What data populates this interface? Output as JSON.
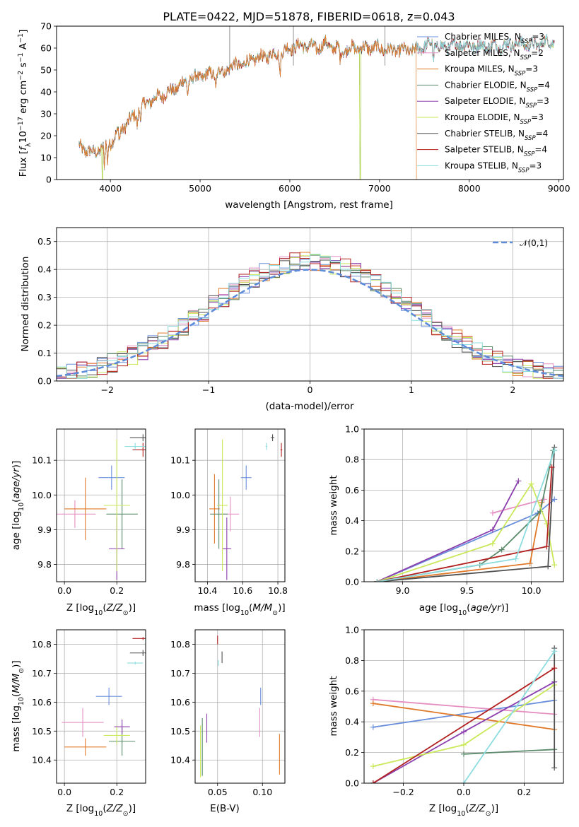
{
  "colors": {
    "Chabrier MILES": "#6a8fdc",
    "Salpeter MILES": "#e58fc2",
    "Kroupa MILES": "#e07a2a",
    "Chabrier ELODIE": "#5a8a6a",
    "Salpeter ELODIE": "#8b3fae",
    "Kroupa ELODIE": "#c9e85a",
    "Chabrier STELIB": "#505050",
    "Salpeter STELIB": "#b22020",
    "Kroupa STELIB": "#8ddde0"
  },
  "chart_data": [
    {
      "id": "spectrum",
      "type": "line",
      "title": "PLATE=0422, MJD=51878, FIBERID=0618, z=0.043",
      "xlabel": "wavelength [Angstrom, rest frame]",
      "ylabel": "Flux [f_λ10^-17 erg cm^-2 s^-1 A^-1]",
      "xlim": [
        3400,
        9050
      ],
      "ylim": [
        0,
        70
      ],
      "xticks": [
        4000,
        5000,
        6000,
        7000,
        8000,
        9000
      ],
      "yticks": [
        0,
        10,
        20,
        30,
        40,
        50,
        60,
        70
      ],
      "grid": false,
      "legend_position": "top-right",
      "legend": [
        {
          "label": "Chabrier MILES, N",
          "sub": "SSP",
          "suffix": "=3"
        },
        {
          "label": "Salpeter MILES, N",
          "sub": "SSP",
          "suffix": "=2"
        },
        {
          "label": "Kroupa MILES, N",
          "sub": "SSP",
          "suffix": "=3"
        },
        {
          "label": "Chabrier ELODIE, N",
          "sub": "SSP",
          "suffix": "=4"
        },
        {
          "label": "Salpeter ELODIE, N",
          "sub": "SSP",
          "suffix": "=3"
        },
        {
          "label": "Kroupa ELODIE, N",
          "sub": "SSP",
          "suffix": "=3"
        },
        {
          "label": "Chabrier STELIB, N",
          "sub": "SSP",
          "suffix": "=4"
        },
        {
          "label": "Salpeter STELIB, N",
          "sub": "SSP",
          "suffix": "=4"
        },
        {
          "label": "Kroupa STELIB, N",
          "sub": "SSP",
          "suffix": "=3"
        }
      ],
      "continuum": [
        [
          3650,
          15
        ],
        [
          3800,
          12
        ],
        [
          3900,
          14
        ],
        [
          4000,
          17
        ],
        [
          4100,
          22
        ],
        [
          4200,
          26
        ],
        [
          4300,
          31
        ],
        [
          4400,
          35
        ],
        [
          4500,
          37
        ],
        [
          4600,
          39
        ],
        [
          4700,
          41
        ],
        [
          4800,
          44
        ],
        [
          4900,
          46
        ],
        [
          5000,
          47
        ],
        [
          5100,
          48
        ],
        [
          5200,
          49
        ],
        [
          5300,
          51
        ],
        [
          5400,
          52
        ],
        [
          5500,
          53
        ],
        [
          5600,
          55
        ],
        [
          5700,
          56
        ],
        [
          5800,
          57
        ],
        [
          5900,
          58
        ],
        [
          6000,
          60
        ],
        [
          6100,
          61
        ],
        [
          6200,
          61
        ],
        [
          6300,
          60
        ],
        [
          6400,
          62
        ],
        [
          6500,
          60
        ],
        [
          6600,
          59
        ],
        [
          6700,
          60
        ],
        [
          6800,
          60
        ],
        [
          6900,
          60
        ],
        [
          7000,
          60
        ],
        [
          7100,
          59
        ],
        [
          7200,
          59
        ],
        [
          7300,
          59
        ],
        [
          7400,
          59
        ],
        [
          7500,
          61
        ],
        [
          7600,
          62
        ],
        [
          7700,
          60
        ],
        [
          7800,
          61
        ],
        [
          7900,
          62
        ],
        [
          8000,
          61
        ],
        [
          8100,
          61
        ],
        [
          8200,
          61
        ],
        [
          8300,
          61
        ],
        [
          8400,
          61
        ],
        [
          8500,
          62
        ],
        [
          8600,
          62
        ],
        [
          8700,
          61
        ],
        [
          8800,
          62
        ],
        [
          8900,
          63
        ]
      ]
    },
    {
      "id": "residual-histogram",
      "type": "histogram",
      "xlabel": "(data-model)/error",
      "ylabel": "Normed distribution",
      "xlim": [
        -2.5,
        2.5
      ],
      "ylim": [
        0,
        0.55
      ],
      "xticks": [
        -2,
        -1,
        0,
        1,
        2
      ],
      "yticks": [
        0.0,
        0.1,
        0.2,
        0.3,
        0.4,
        0.5
      ],
      "grid": true,
      "legend_position": "top-right",
      "reference_curve": {
        "label": "𝒩(0,1)",
        "mean": 0,
        "sigma": 1
      },
      "bin_width": 0.1
    },
    {
      "id": "age-vs-Z",
      "type": "errorbar",
      "xlabel": "Z [log10(Z/Z⊙)]",
      "ylabel": "age  [log10(age/yr)]",
      "xlim": [
        -0.03,
        0.31
      ],
      "ylim": [
        9.75,
        10.19
      ],
      "xticks": [
        0.0,
        0.2
      ],
      "yticks": [
        9.8,
        9.9,
        10.0,
        10.1
      ],
      "grid": true,
      "points": [
        {
          "model": "Chabrier MILES",
          "x": 0.18,
          "y": 10.05,
          "xerr": 0.05,
          "yerr": 0.035
        },
        {
          "model": "Salpeter MILES",
          "x": 0.04,
          "y": 9.945,
          "xerr": 0.08,
          "yerr": 0.04
        },
        {
          "model": "Kroupa MILES",
          "x": 0.08,
          "y": 9.96,
          "xerr": 0.08,
          "yerr": 0.09
        },
        {
          "model": "Chabrier ELODIE",
          "x": 0.22,
          "y": 9.945,
          "xerr": 0.06,
          "yerr": 0.1
        },
        {
          "model": "Salpeter ELODIE",
          "x": 0.2,
          "y": 9.845,
          "xerr": 0.03,
          "yerr": 0.09
        },
        {
          "model": "Kroupa ELODIE",
          "x": 0.2,
          "y": 9.97,
          "xerr": 0.05,
          "yerr": 0.19
        },
        {
          "model": "Chabrier STELIB",
          "x": 0.3,
          "y": 10.165,
          "xerr": 0.05,
          "yerr": 0.01
        },
        {
          "model": "Salpeter STELIB",
          "x": 0.3,
          "y": 10.13,
          "xerr": 0.04,
          "yerr": 0.02
        },
        {
          "model": "Kroupa STELIB",
          "x": 0.27,
          "y": 10.14,
          "xerr": 0.04,
          "yerr": 0.01
        }
      ]
    },
    {
      "id": "age-vs-mass",
      "type": "errorbar",
      "xlabel": "mass [log10(M/M⊙)]",
      "ylabel": "",
      "xlim": [
        10.33,
        10.84
      ],
      "ylim": [
        9.75,
        10.19
      ],
      "xticks": [
        10.4,
        10.6,
        10.8
      ],
      "yticks": [
        9.8,
        9.9,
        10.0,
        10.1
      ],
      "grid": true,
      "points": [
        {
          "model": "Chabrier MILES",
          "x": 10.62,
          "y": 10.05,
          "xerr": 0.03,
          "yerr": 0.035
        },
        {
          "model": "Salpeter MILES",
          "x": 10.53,
          "y": 9.945,
          "xerr": 0.05,
          "yerr": 0.05
        },
        {
          "model": "Kroupa MILES",
          "x": 10.44,
          "y": 9.96,
          "xerr": 0.03,
          "yerr": 0.1
        },
        {
          "model": "Chabrier ELODIE",
          "x": 10.465,
          "y": 9.945,
          "xerr": 0.05,
          "yerr": 0.1
        },
        {
          "model": "Salpeter ELODIE",
          "x": 10.51,
          "y": 9.845,
          "xerr": 0.025,
          "yerr": 0.09
        },
        {
          "model": "Kroupa ELODIE",
          "x": 10.485,
          "y": 9.97,
          "xerr": 0.03,
          "yerr": 0.19
        },
        {
          "model": "Chabrier STELIB",
          "x": 10.77,
          "y": 10.165,
          "xerr": 0.01,
          "yerr": 0.01
        },
        {
          "model": "Salpeter STELIB",
          "x": 10.82,
          "y": 10.13,
          "xerr": 0.005,
          "yerr": 0.02
        },
        {
          "model": "Kroupa STELIB",
          "x": 10.735,
          "y": 10.14,
          "xerr": 0.005,
          "yerr": 0.01
        }
      ]
    },
    {
      "id": "massweight-vs-age",
      "type": "line",
      "xlabel": "age  [log10(age/yr)]",
      "ylabel": "mass weight",
      "xlim": [
        8.7,
        10.25
      ],
      "ylim": [
        0,
        1.0
      ],
      "xticks": [
        9.0,
        9.5,
        10.0
      ],
      "yticks": [
        0.0,
        0.2,
        0.4,
        0.6,
        0.8,
        1.0
      ],
      "grid": true,
      "series": [
        {
          "name": "Chabrier MILES",
          "x": [
            8.8,
            10.05,
            10.18
          ],
          "y": [
            0.0,
            0.45,
            0.54
          ]
        },
        {
          "name": "Salpeter MILES",
          "x": [
            9.7,
            10.1
          ],
          "y": [
            0.45,
            0.54
          ]
        },
        {
          "name": "Kroupa MILES",
          "x": [
            8.8,
            9.99,
            10.08
          ],
          "y": [
            0.0,
            0.12,
            0.52
          ]
        },
        {
          "name": "Chabrier ELODIE",
          "x": [
            8.8,
            9.6,
            9.77,
            10.07,
            10.17
          ],
          "y": [
            0.0,
            0.11,
            0.21,
            0.46,
            0.86
          ]
        },
        {
          "name": "Salpeter ELODIE",
          "x": [
            8.8,
            9.7,
            9.9
          ],
          "y": [
            0.0,
            0.34,
            0.66
          ]
        },
        {
          "name": "Kroupa ELODIE",
          "x": [
            8.8,
            9.7,
            10.0,
            10.12,
            10.18
          ],
          "y": [
            0.0,
            0.25,
            0.64,
            0.38,
            0.11
          ]
        },
        {
          "name": "Chabrier STELIB",
          "x": [
            8.8,
            10.13,
            10.18
          ],
          "y": [
            0.0,
            0.1,
            0.88
          ]
        },
        {
          "name": "Salpeter STELIB",
          "x": [
            8.8,
            10.12,
            10.16
          ],
          "y": [
            0.0,
            0.23,
            0.75
          ]
        },
        {
          "name": "Kroupa STELIB",
          "x": [
            8.8,
            9.88,
            10.18
          ],
          "y": [
            0.0,
            0.15,
            0.86
          ]
        }
      ]
    },
    {
      "id": "mass-vs-Z",
      "type": "errorbar",
      "xlabel": "Z [log10(Z/Z⊙)]",
      "ylabel": "mass [log10(M/M⊙)]",
      "xlim": [
        -0.03,
        0.31
      ],
      "ylim": [
        10.32,
        10.85
      ],
      "xticks": [
        0.0,
        0.2
      ],
      "yticks": [
        10.4,
        10.5,
        10.6,
        10.7,
        10.8
      ],
      "grid": true,
      "points": [
        {
          "model": "Chabrier MILES",
          "x": 0.17,
          "y": 10.62,
          "xerr": 0.05,
          "yerr": 0.03
        },
        {
          "model": "Salpeter MILES",
          "x": 0.07,
          "y": 10.53,
          "xerr": 0.08,
          "yerr": 0.05
        },
        {
          "model": "Kroupa MILES",
          "x": 0.08,
          "y": 10.445,
          "xerr": 0.08,
          "yerr": 0.03
        },
        {
          "model": "Chabrier ELODIE",
          "x": 0.22,
          "y": 10.465,
          "xerr": 0.05,
          "yerr": 0.05
        },
        {
          "model": "Salpeter ELODIE",
          "x": 0.22,
          "y": 10.515,
          "xerr": 0.03,
          "yerr": 0.025
        },
        {
          "model": "Kroupa ELODIE",
          "x": 0.2,
          "y": 10.485,
          "xerr": 0.05,
          "yerr": 0.03
        },
        {
          "model": "Chabrier STELIB",
          "x": 0.3,
          "y": 10.77,
          "xerr": 0.05,
          "yerr": 0.01
        },
        {
          "model": "Salpeter STELIB",
          "x": 0.3,
          "y": 10.82,
          "xerr": 0.04,
          "yerr": 0.005
        },
        {
          "model": "Kroupa STELIB",
          "x": 0.27,
          "y": 10.735,
          "xerr": 0.03,
          "yerr": 0.005
        }
      ]
    },
    {
      "id": "mass-vs-ebv",
      "type": "errorbar",
      "xlabel": "E(B-V)",
      "ylabel": "",
      "xlim": [
        0.025,
        0.125
      ],
      "ylim": [
        10.32,
        10.85
      ],
      "xticks": [
        0.05,
        0.1
      ],
      "yticks": [
        10.4,
        10.5,
        10.6,
        10.7,
        10.8
      ],
      "grid": true,
      "points": [
        {
          "model": "Chabrier MILES",
          "x": 0.098,
          "y": 10.62,
          "xerr": 0,
          "yerr": 0.03
        },
        {
          "model": "Salpeter MILES",
          "x": 0.097,
          "y": 10.53,
          "xerr": 0,
          "yerr": 0.05
        },
        {
          "model": "Kroupa MILES",
          "x": 0.119,
          "y": 10.42,
          "xerr": 0,
          "yerr": 0.07
        },
        {
          "model": "Chabrier ELODIE",
          "x": 0.033,
          "y": 10.445,
          "xerr": 0,
          "yerr": 0.1
        },
        {
          "model": "Salpeter ELODIE",
          "x": 0.038,
          "y": 10.51,
          "xerr": 0,
          "yerr": 0.05
        },
        {
          "model": "Kroupa ELODIE",
          "x": 0.031,
          "y": 10.43,
          "xerr": 0,
          "yerr": 0.09
        },
        {
          "model": "Chabrier STELIB",
          "x": 0.055,
          "y": 10.755,
          "xerr": 0,
          "yerr": 0.02
        },
        {
          "model": "Salpeter STELIB",
          "x": 0.05,
          "y": 10.815,
          "xerr": 0,
          "yerr": 0.015
        },
        {
          "model": "Kroupa STELIB",
          "x": 0.051,
          "y": 10.735,
          "xerr": 0,
          "yerr": 0.01
        }
      ]
    },
    {
      "id": "massweight-vs-Z",
      "type": "line",
      "xlabel": "Z [log10(Z/Z⊙)]",
      "ylabel": "mass weight",
      "xlim": [
        -0.33,
        0.33
      ],
      "ylim": [
        0,
        1.0
      ],
      "xticks": [
        -0.2,
        0.0,
        0.2
      ],
      "yticks": [
        0.0,
        0.2,
        0.4,
        0.6,
        0.8,
        1.0
      ],
      "grid": true,
      "series": [
        {
          "name": "Chabrier MILES",
          "x": [
            -0.3,
            0.3
          ],
          "y": [
            0.365,
            0.54
          ]
        },
        {
          "name": "Salpeter MILES",
          "x": [
            -0.3,
            0.3
          ],
          "y": [
            0.545,
            0.45
          ]
        },
        {
          "name": "Kroupa MILES",
          "x": [
            -0.3,
            0.3
          ],
          "y": [
            0.52,
            0.35
          ]
        },
        {
          "name": "Chabrier ELODIE",
          "x": [
            0.0,
            0.3
          ],
          "y": [
            0.19,
            0.22
          ]
        },
        {
          "name": "Salpeter ELODIE",
          "x": [
            -0.3,
            0.0,
            0.3
          ],
          "y": [
            0.0,
            0.335,
            0.66
          ]
        },
        {
          "name": "Kroupa ELODIE",
          "x": [
            -0.3,
            0.0,
            0.3
          ],
          "y": [
            0.11,
            0.25,
            0.64
          ]
        },
        {
          "name": "Chabrier STELIB",
          "x": [
            0.3,
            0.3
          ],
          "y": [
            0.1,
            0.88
          ]
        },
        {
          "name": "Salpeter STELIB",
          "x": [
            -0.3,
            0.3
          ],
          "y": [
            0.0,
            0.75
          ]
        },
        {
          "name": "Kroupa STELIB",
          "x": [
            0.0,
            0.3
          ],
          "y": [
            0.0,
            0.86
          ]
        }
      ]
    }
  ]
}
